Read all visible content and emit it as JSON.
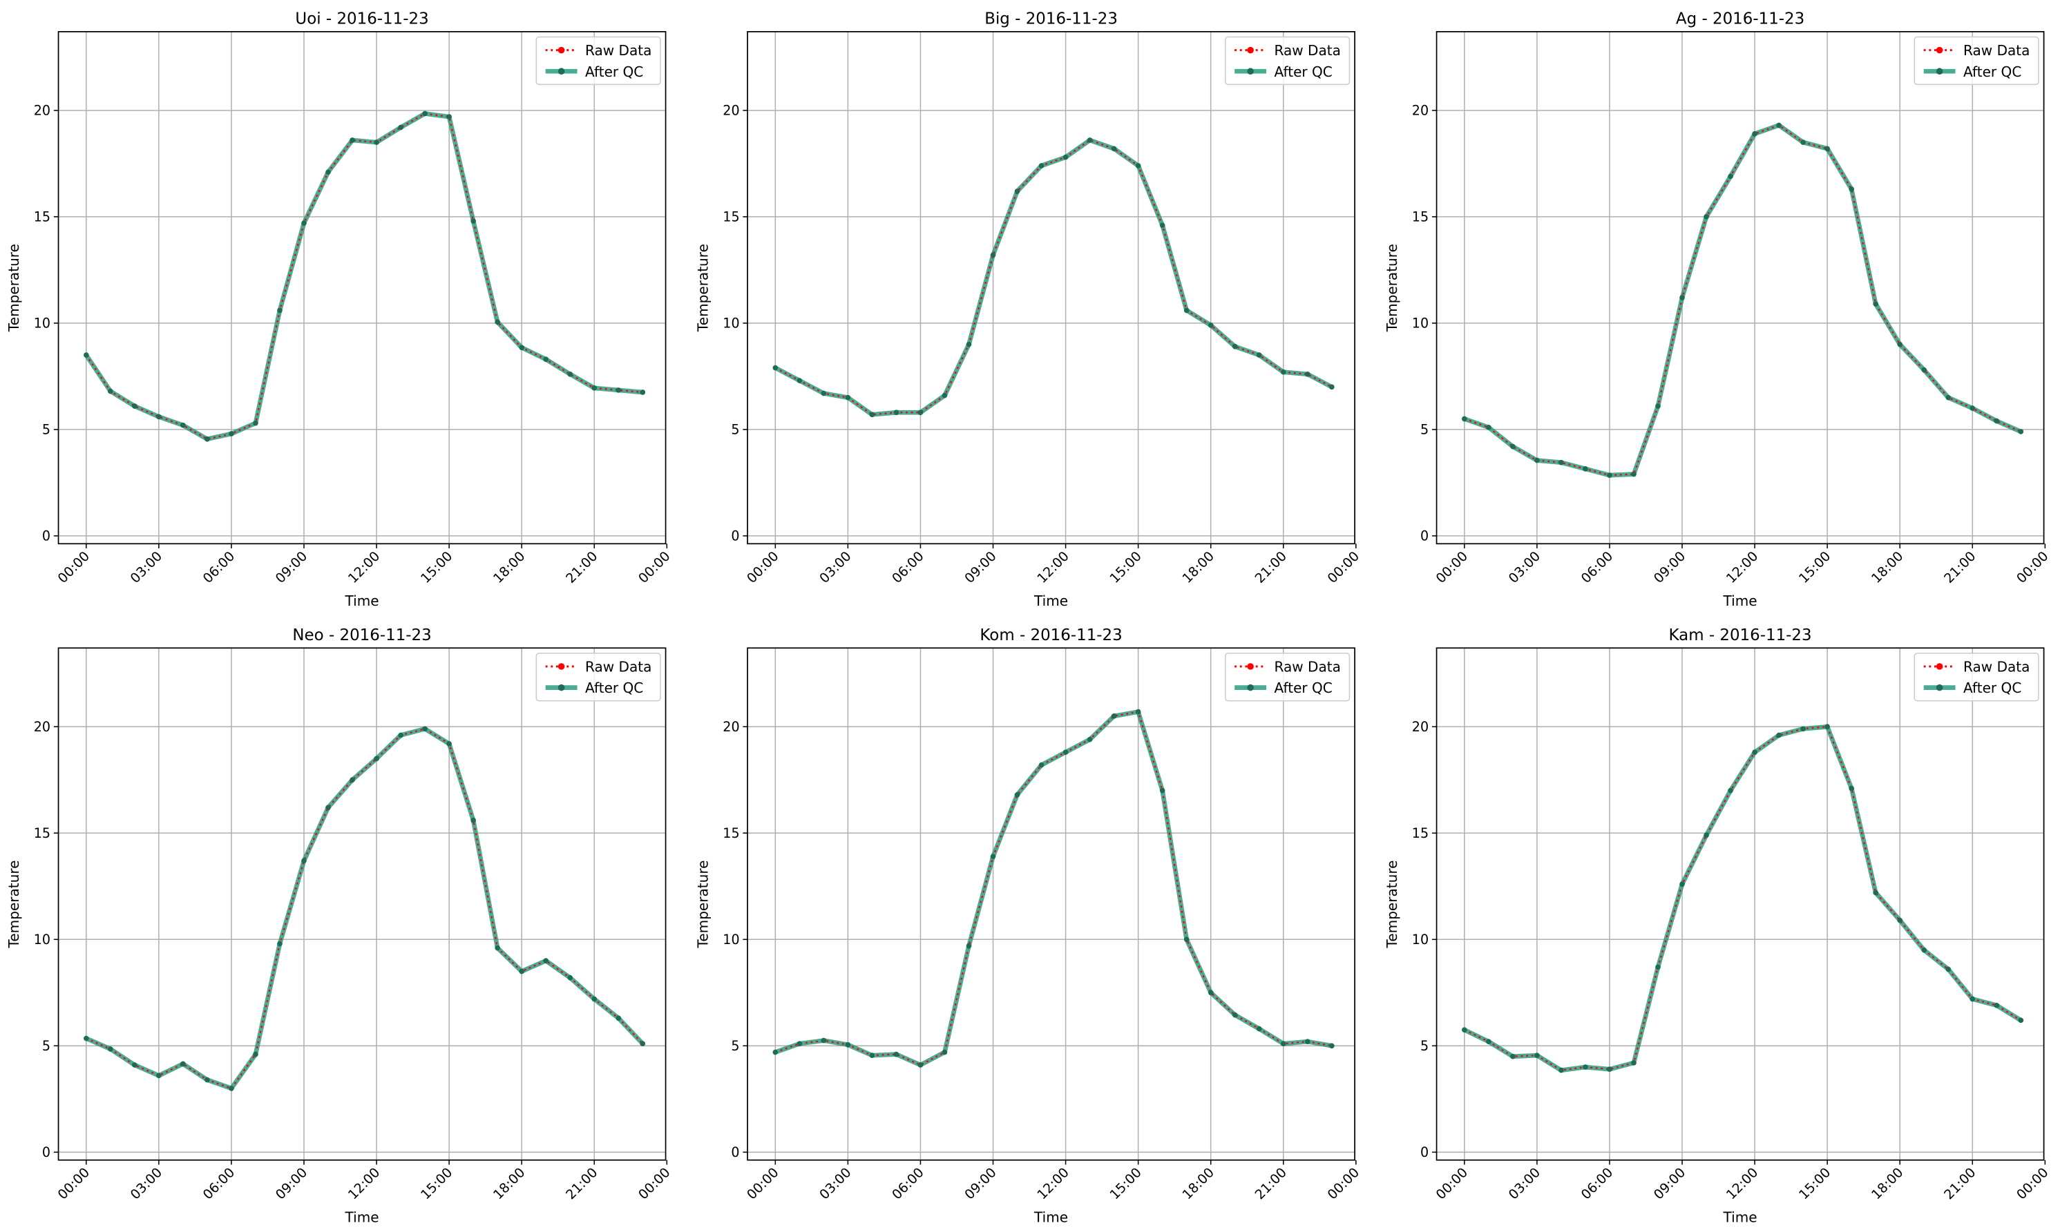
{
  "chart_data": [
    {
      "type": "line",
      "title": "Uoi - 2016-11-23",
      "xlabel": "Time",
      "ylabel": "Temperature",
      "ylim": [
        -0.37,
        23.7
      ],
      "xlim_hours": [
        -1.15,
        23.95
      ],
      "values": [
        8.5,
        6.8,
        6.1,
        5.6,
        5.2,
        4.55,
        4.8,
        5.3,
        10.6,
        14.7,
        17.1,
        18.6,
        18.5,
        19.2,
        19.85,
        19.7,
        14.8,
        10.05,
        8.85,
        8.3,
        7.6,
        6.95,
        6.85,
        6.75
      ]
    },
    {
      "type": "line",
      "title": "Big - 2016-11-23",
      "xlabel": "Time",
      "ylabel": "Temperature",
      "ylim": [
        -0.37,
        23.7
      ],
      "xlim_hours": [
        -1.15,
        23.95
      ],
      "values": [
        7.9,
        7.3,
        6.7,
        6.5,
        5.7,
        5.8,
        5.8,
        6.6,
        9.0,
        13.2,
        16.2,
        17.4,
        17.8,
        18.6,
        18.2,
        17.4,
        14.6,
        10.6,
        9.9,
        8.9,
        8.5,
        7.7,
        7.6,
        7.0
      ]
    },
    {
      "type": "line",
      "title": "Ag - 2016-11-23",
      "xlabel": "Time",
      "ylabel": "Temperature",
      "ylim": [
        -0.37,
        23.7
      ],
      "xlim_hours": [
        -1.15,
        23.95
      ],
      "values": [
        5.5,
        5.1,
        4.2,
        3.55,
        3.45,
        3.15,
        2.85,
        2.9,
        6.1,
        11.2,
        15.0,
        16.9,
        18.9,
        19.3,
        18.5,
        18.2,
        16.3,
        10.9,
        9.0,
        7.8,
        6.5,
        6.0,
        5.4,
        4.9
      ]
    },
    {
      "type": "line",
      "title": "Neo - 2016-11-23",
      "xlabel": "Time",
      "ylabel": "Temperature",
      "ylim": [
        -0.37,
        23.7
      ],
      "xlim_hours": [
        -1.15,
        23.95
      ],
      "values": [
        5.35,
        4.85,
        4.1,
        3.6,
        4.15,
        3.4,
        3.0,
        4.6,
        9.8,
        13.7,
        16.2,
        17.5,
        18.5,
        19.6,
        19.9,
        19.2,
        15.6,
        9.6,
        8.5,
        9.0,
        8.2,
        7.2,
        6.3,
        5.1
      ]
    },
    {
      "type": "line",
      "title": "Kom - 2016-11-23",
      "xlabel": "Time",
      "ylabel": "Temperature",
      "ylim": [
        -0.37,
        23.7
      ],
      "xlim_hours": [
        -1.15,
        23.95
      ],
      "values": [
        4.7,
        5.1,
        5.25,
        5.05,
        4.55,
        4.6,
        4.1,
        4.7,
        9.7,
        13.9,
        16.8,
        18.2,
        18.8,
        19.4,
        20.5,
        20.7,
        17.0,
        10.0,
        7.5,
        6.45,
        5.8,
        5.1,
        5.2,
        5.0
      ]
    },
    {
      "type": "line",
      "title": "Kam - 2016-11-23",
      "xlabel": "Time",
      "ylabel": "Temperature",
      "ylim": [
        -0.37,
        23.7
      ],
      "xlim_hours": [
        -1.15,
        23.95
      ],
      "values": [
        5.75,
        5.2,
        4.5,
        4.55,
        3.85,
        4.0,
        3.9,
        4.2,
        8.7,
        12.6,
        14.9,
        17.0,
        18.8,
        19.6,
        19.9,
        20.0,
        17.1,
        12.2,
        10.9,
        9.5,
        8.6,
        7.2,
        6.9,
        6.2
      ]
    }
  ],
  "shared": {
    "x_hours": [
      0,
      1,
      2,
      3,
      4,
      5,
      6,
      7,
      8,
      9,
      10,
      11,
      12,
      13,
      14,
      15,
      16,
      17,
      18,
      19,
      20,
      21,
      22,
      23
    ],
    "xticks": [
      {
        "h": 0,
        "label": "00:00"
      },
      {
        "h": 3,
        "label": "03:00"
      },
      {
        "h": 6,
        "label": "06:00"
      },
      {
        "h": 9,
        "label": "09:00"
      },
      {
        "h": 12,
        "label": "12:00"
      },
      {
        "h": 15,
        "label": "15:00"
      },
      {
        "h": 18,
        "label": "18:00"
      },
      {
        "h": 21,
        "label": "21:00"
      },
      {
        "h": 24,
        "label": "00:00"
      }
    ],
    "yticks": [
      0,
      5,
      10,
      15,
      20
    ],
    "grid": true,
    "legend_placement": "top-right",
    "legend": [
      {
        "name": "Raw Data",
        "color": "#ff0000"
      },
      {
        "name": "After QC",
        "color": "#2a9d7f"
      }
    ]
  }
}
